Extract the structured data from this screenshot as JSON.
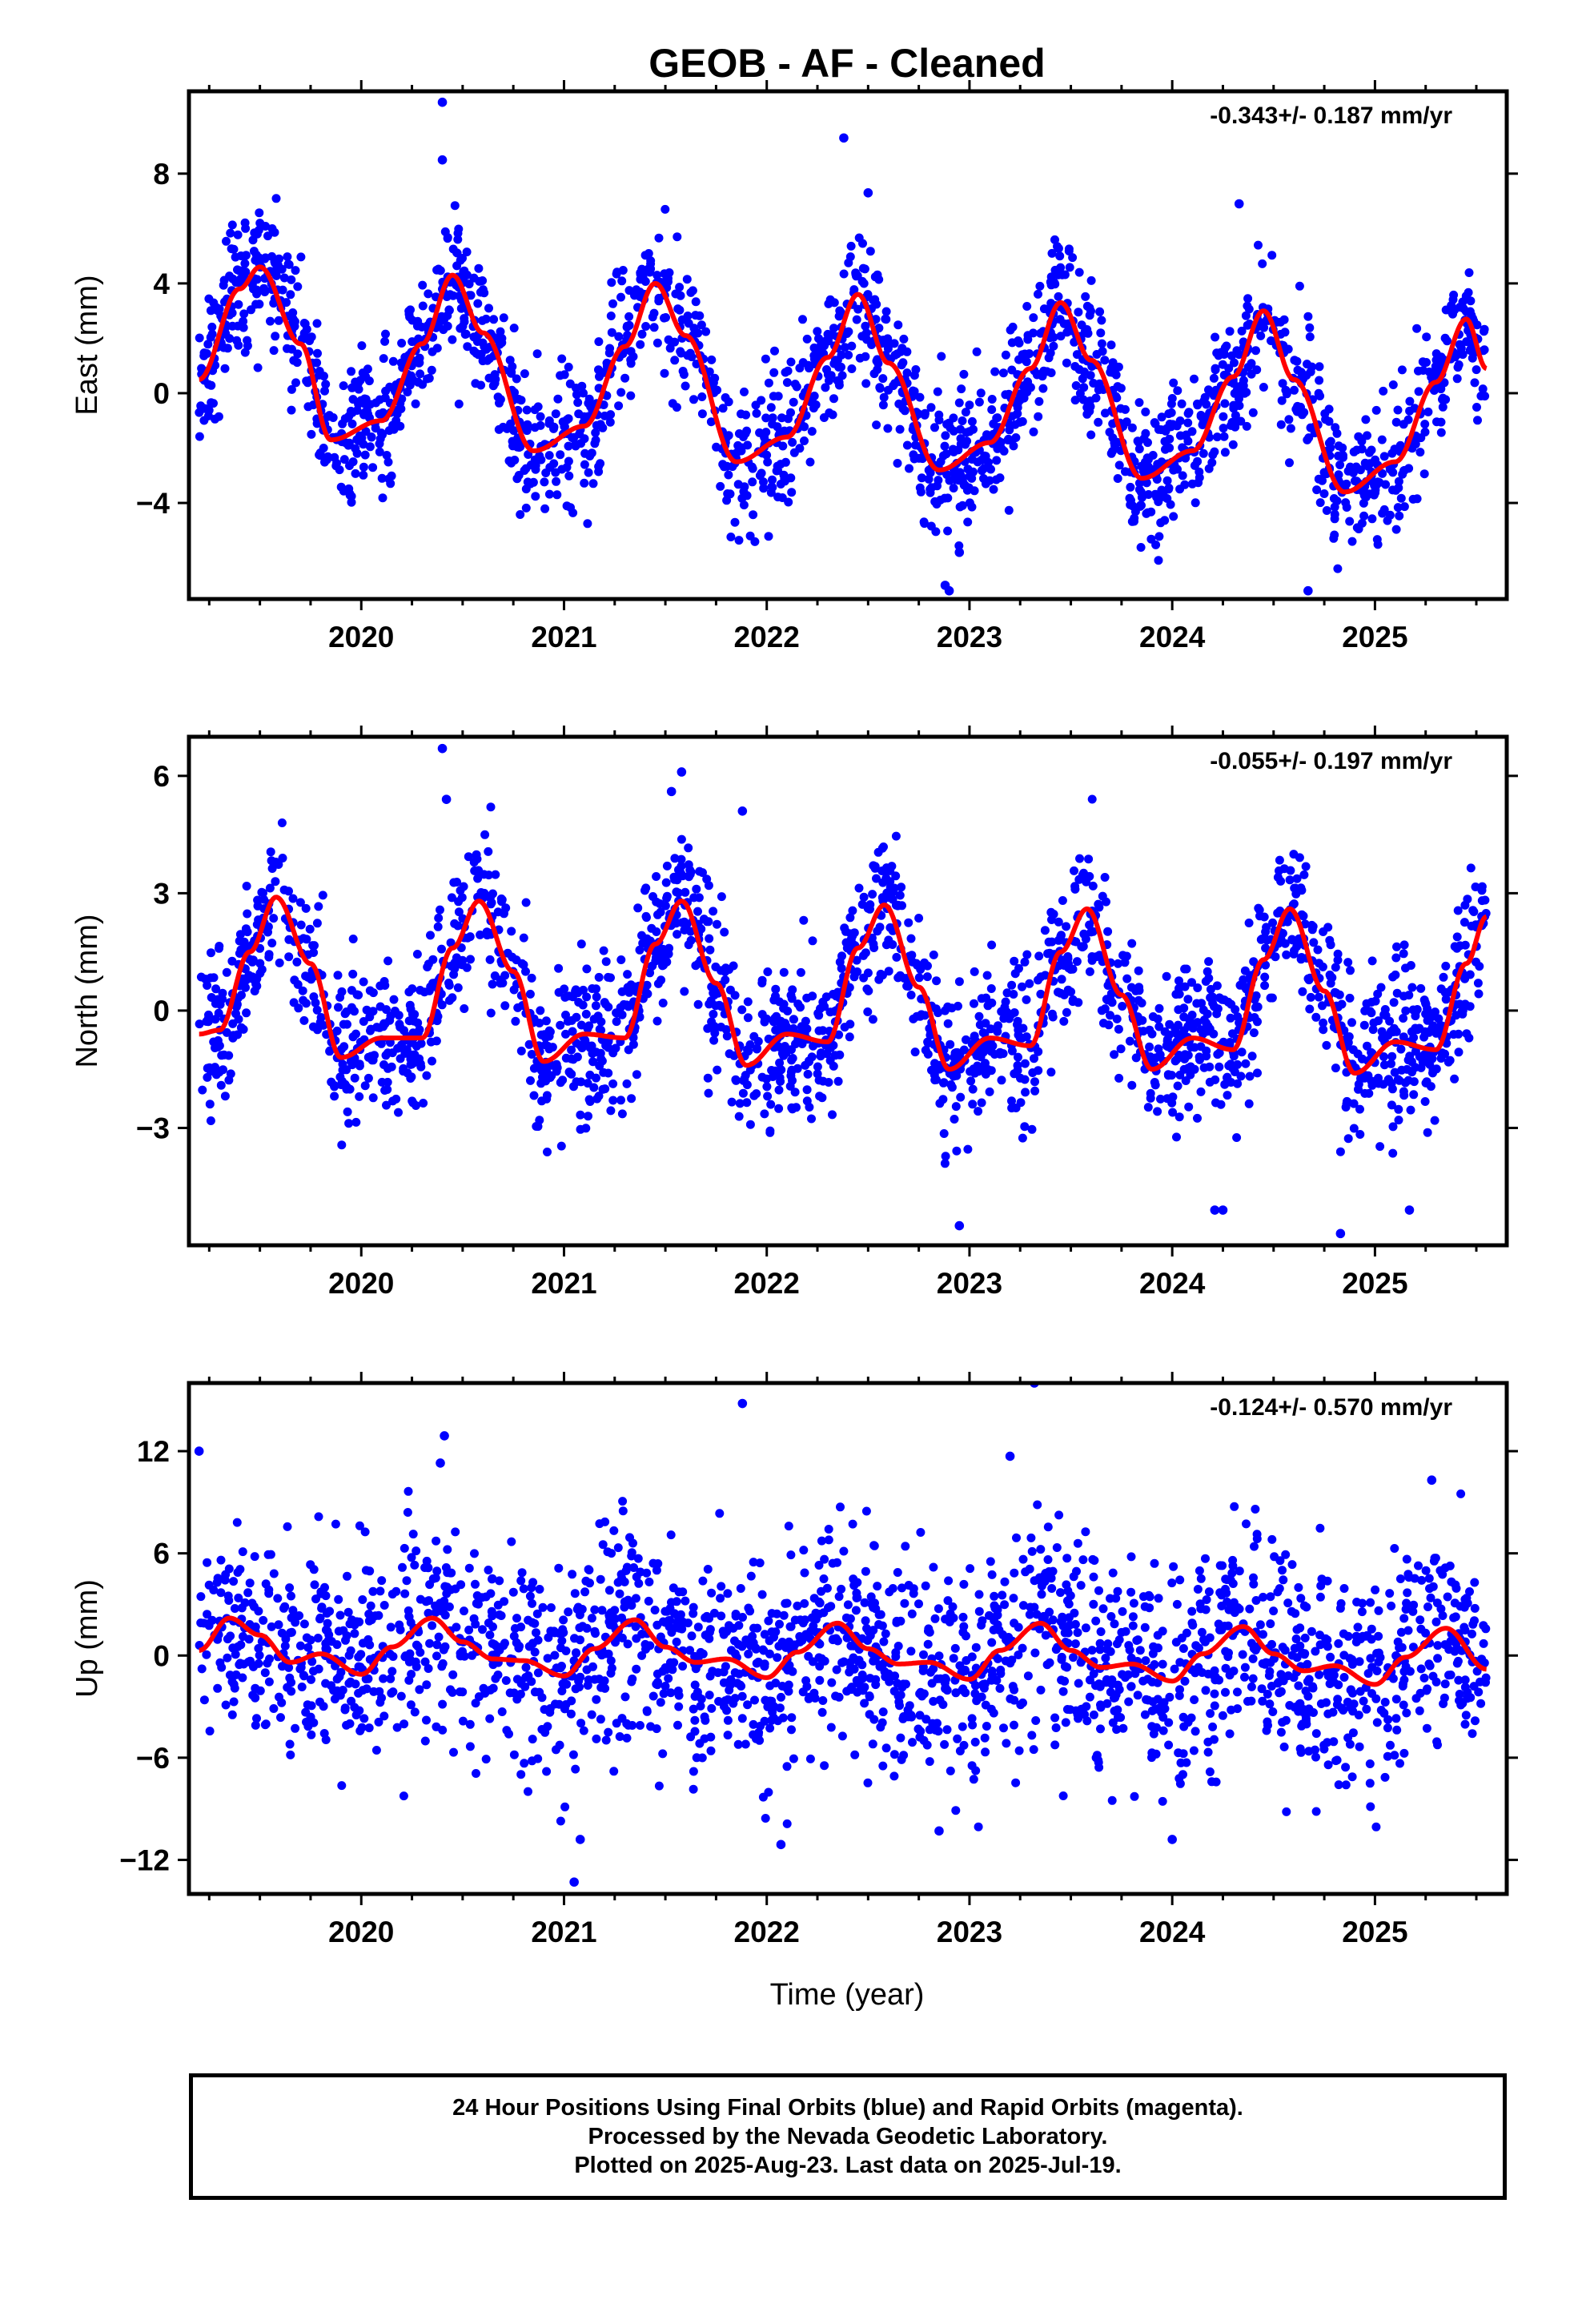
{
  "title": "GEOB  - AF - Cleaned",
  "xlabel": "Time (year)",
  "footer": {
    "line1": "24 Hour Positions Using Final Orbits (blue) and Rapid Orbits (magenta).",
    "line2": "Processed by the Nevada Geodetic Laboratory.",
    "line3": "Plotted on 2025-Aug-23. Last data on 2025-Jul-19."
  },
  "colors": {
    "points": "#0000ff",
    "fit": "#ff0000",
    "axes": "#000000"
  },
  "chart_data": [
    {
      "type": "scatter",
      "ylabel": "East (mm)",
      "rate_text": "-0.343+/- 0.187 mm/yr",
      "xlim": [
        2019.15,
        2025.65
      ],
      "ylim": [
        -7.5,
        11
      ],
      "xticks": [
        2020,
        2021,
        2022,
        2023,
        2024,
        2025
      ],
      "yticks": [
        -4,
        0,
        4,
        8
      ],
      "ytick_labels": [
        "−4",
        "0",
        "4",
        "8"
      ],
      "fit": {
        "x": [
          2019.2,
          2019.4,
          2019.5,
          2019.7,
          2019.85,
          2020.1,
          2020.3,
          2020.45,
          2020.6,
          2020.85,
          2021.1,
          2021.3,
          2021.45,
          2021.6,
          2021.85,
          2022.1,
          2022.3,
          2022.45,
          2022.6,
          2022.85,
          2023.1,
          2023.3,
          2023.45,
          2023.6,
          2023.85,
          2024.1,
          2024.3,
          2024.45,
          2024.6,
          2024.85,
          2025.1,
          2025.3,
          2025.45,
          2025.55
        ],
        "y": [
          0.5,
          3.8,
          4.6,
          1.8,
          -1.7,
          -1.0,
          1.8,
          4.3,
          2.2,
          -2.1,
          -1.2,
          1.7,
          4.0,
          2.1,
          -2.5,
          -1.6,
          1.3,
          3.6,
          1.1,
          -2.8,
          -1.8,
          0.9,
          3.3,
          1.2,
          -3.1,
          -2.1,
          0.6,
          3.0,
          0.5,
          -3.6,
          -2.5,
          0.4,
          2.7,
          0.9
        ]
      },
      "scatter": {
        "noise": 1.25,
        "mean": 0.0,
        "per_year": 330
      },
      "outliers": {
        "x": [
          2020.4,
          2020.4,
          2022.38,
          2022.5,
          2022.9,
          2022.95,
          2022.88,
          2024.33,
          2024.67
        ],
        "y": [
          10.6,
          8.5,
          9.3,
          7.3,
          -7.2,
          -5.8,
          -7.0,
          6.9,
          -7.2
        ]
      }
    },
    {
      "type": "scatter",
      "ylabel": "North (mm)",
      "rate_text": "-0.055+/- 0.197 mm/yr",
      "xlim": [
        2019.15,
        2025.65
      ],
      "ylim": [
        -6,
        7
      ],
      "xticks": [
        2020,
        2021,
        2022,
        2023,
        2024,
        2025
      ],
      "yticks": [
        -3,
        0,
        3,
        6
      ],
      "ytick_labels": [
        "−3",
        "0",
        "3",
        "6"
      ],
      "fit": {
        "x": [
          2019.2,
          2019.3,
          2019.45,
          2019.58,
          2019.75,
          2019.9,
          2020.1,
          2020.3,
          2020.45,
          2020.58,
          2020.75,
          2020.9,
          2021.1,
          2021.3,
          2021.45,
          2021.58,
          2021.75,
          2021.9,
          2022.1,
          2022.3,
          2022.45,
          2022.58,
          2022.75,
          2022.9,
          2023.1,
          2023.3,
          2023.45,
          2023.58,
          2023.75,
          2023.9,
          2024.1,
          2024.3,
          2024.45,
          2024.58,
          2024.75,
          2024.9,
          2025.1,
          2025.3,
          2025.45,
          2025.55
        ],
        "y": [
          -0.6,
          -0.5,
          1.5,
          2.9,
          1.2,
          -1.2,
          -0.7,
          -0.7,
          1.6,
          2.8,
          1.0,
          -1.3,
          -0.6,
          -0.7,
          1.7,
          2.8,
          0.7,
          -1.4,
          -0.6,
          -0.8,
          1.6,
          2.7,
          0.6,
          -1.5,
          -0.7,
          -0.9,
          1.5,
          2.6,
          0.4,
          -1.5,
          -0.7,
          -1.0,
          1.3,
          2.6,
          0.5,
          -1.6,
          -0.8,
          -1.0,
          1.2,
          2.4
        ]
      },
      "scatter": {
        "noise": 0.95,
        "mean": 0.0,
        "per_year": 330
      },
      "outliers": {
        "x": [
          2020.4,
          2020.42,
          2021.53,
          2021.58,
          2021.88,
          2022.95,
          2024.25,
          2024.21,
          2024.83,
          2025.17
        ],
        "y": [
          6.7,
          5.4,
          5.6,
          6.1,
          5.1,
          -5.5,
          -5.1,
          -5.1,
          -5.7,
          -5.1
        ]
      }
    },
    {
      "type": "scatter",
      "ylabel": "Up (mm)",
      "rate_text": "-0.124+/- 0.570 mm/yr",
      "xlim": [
        2019.15,
        2025.65
      ],
      "ylim": [
        -14,
        16
      ],
      "xticks": [
        2020,
        2021,
        2022,
        2023,
        2024,
        2025
      ],
      "yticks": [
        -12,
        -6,
        0,
        6,
        12
      ],
      "ytick_labels": [
        "−12",
        "−6",
        "0",
        "6",
        "12"
      ],
      "fit": {
        "x": [
          2019.2,
          2019.35,
          2019.5,
          2019.65,
          2019.8,
          2020.0,
          2020.15,
          2020.35,
          2020.5,
          2020.65,
          2020.8,
          2021.0,
          2021.15,
          2021.35,
          2021.5,
          2021.65,
          2021.8,
          2022.0,
          2022.15,
          2022.35,
          2022.5,
          2022.65,
          2022.8,
          2023.0,
          2023.15,
          2023.35,
          2023.5,
          2023.65,
          2023.8,
          2024.0,
          2024.15,
          2024.35,
          2024.5,
          2024.65,
          2024.8,
          2025.0,
          2025.15,
          2025.35,
          2025.55
        ],
        "y": [
          0.3,
          2.2,
          1.2,
          -0.4,
          0.1,
          -1.1,
          0.5,
          2.2,
          0.8,
          -0.2,
          -0.3,
          -1.2,
          0.4,
          2.1,
          0.5,
          -0.4,
          -0.2,
          -1.3,
          0.2,
          1.9,
          0.4,
          -0.5,
          -0.4,
          -1.4,
          0.3,
          1.9,
          0.3,
          -0.7,
          -0.5,
          -1.5,
          0.1,
          1.7,
          0.1,
          -0.9,
          -0.6,
          -1.7,
          -0.1,
          1.6,
          -0.8
        ]
      },
      "scatter": {
        "noise": 3.1,
        "mean": 0.0,
        "per_year": 330
      },
      "outliers": {
        "x": [
          2019.2,
          2020.41,
          2020.39,
          2021.88,
          2021.05,
          2021.08,
          2023.32,
          2023.2,
          2022.85,
          2022.07,
          2024.0,
          2025.28
        ],
        "y": [
          12.0,
          12.9,
          11.3,
          14.8,
          -13.3,
          -10.8,
          16.0,
          11.7,
          -10.3,
          -11.1,
          -10.8,
          10.3
        ]
      }
    }
  ]
}
